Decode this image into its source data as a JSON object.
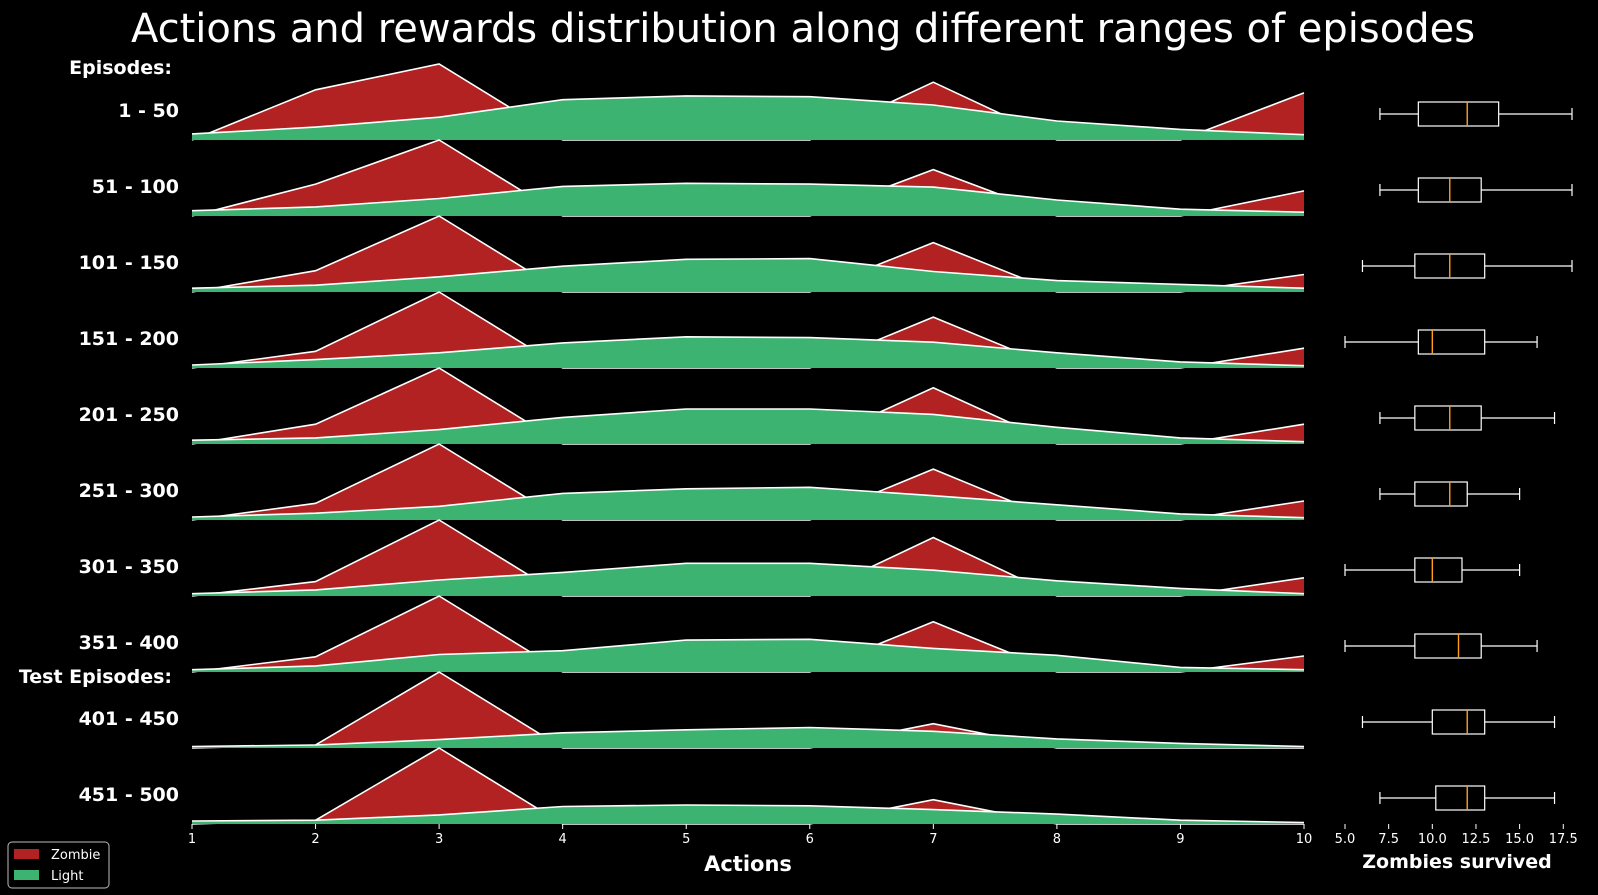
{
  "chart_data": {
    "type": "area",
    "title": "Actions and rewards distribution along different ranges of episodes",
    "group_headers": [
      "Episodes:",
      "Test Episodes:"
    ],
    "x": [
      1,
      2,
      3,
      4,
      5,
      6,
      7,
      8,
      9,
      10
    ],
    "xlabel": "Actions",
    "xlim": [
      1,
      10
    ],
    "legend": {
      "position": "bottom-left",
      "entries": [
        "Zombie",
        "Light"
      ]
    },
    "colors": {
      "Zombie": "#b22222",
      "Light": "#3cb371",
      "outline": "#ffffff",
      "median": "#ff9f1c",
      "background": "#000000"
    },
    "rows": [
      {
        "label": "1 - 50",
        "zombie": [
          0.0,
          0.66,
          1.0,
          0.0,
          0.0,
          0.0,
          0.76,
          0.0,
          0.0,
          0.62
        ],
        "light": [
          0.08,
          0.17,
          0.3,
          0.53,
          0.58,
          0.57,
          0.46,
          0.25,
          0.14,
          0.07
        ]
      },
      {
        "label": "51 - 100",
        "zombie": [
          0.0,
          0.42,
          1.0,
          0.0,
          0.0,
          0.0,
          0.61,
          0.0,
          0.0,
          0.33
        ],
        "light": [
          0.07,
          0.12,
          0.23,
          0.39,
          0.43,
          0.42,
          0.38,
          0.21,
          0.09,
          0.05
        ]
      },
      {
        "label": "101 - 150",
        "zombie": [
          0.0,
          0.28,
          1.0,
          0.0,
          0.0,
          0.0,
          0.65,
          0.0,
          0.0,
          0.23
        ],
        "light": [
          0.05,
          0.09,
          0.2,
          0.34,
          0.43,
          0.44,
          0.27,
          0.15,
          0.1,
          0.05
        ]
      },
      {
        "label": "151 - 200",
        "zombie": [
          0.0,
          0.22,
          1.0,
          0.0,
          0.0,
          0.0,
          0.67,
          0.0,
          0.0,
          0.26
        ],
        "light": [
          0.04,
          0.11,
          0.2,
          0.33,
          0.41,
          0.4,
          0.34,
          0.2,
          0.08,
          0.03
        ]
      },
      {
        "label": "201 - 250",
        "zombie": [
          0.0,
          0.26,
          1.0,
          0.0,
          0.0,
          0.0,
          0.74,
          0.0,
          0.0,
          0.26
        ],
        "light": [
          0.05,
          0.08,
          0.19,
          0.35,
          0.46,
          0.46,
          0.39,
          0.22,
          0.08,
          0.03
        ]
      },
      {
        "label": "251 - 300",
        "zombie": [
          0.0,
          0.22,
          1.0,
          0.0,
          0.0,
          0.0,
          0.67,
          0.0,
          0.0,
          0.25
        ],
        "light": [
          0.04,
          0.09,
          0.18,
          0.35,
          0.41,
          0.43,
          0.32,
          0.2,
          0.08,
          0.03
        ]
      },
      {
        "label": "301 - 350",
        "zombie": [
          0.0,
          0.19,
          1.0,
          0.0,
          0.0,
          0.0,
          0.77,
          0.0,
          0.0,
          0.24
        ],
        "light": [
          0.03,
          0.08,
          0.21,
          0.31,
          0.43,
          0.43,
          0.34,
          0.2,
          0.1,
          0.03
        ]
      },
      {
        "label": "351 - 400",
        "zombie": [
          0.0,
          0.2,
          1.0,
          0.0,
          0.0,
          0.0,
          0.66,
          0.0,
          0.0,
          0.21
        ],
        "light": [
          0.03,
          0.08,
          0.23,
          0.28,
          0.42,
          0.43,
          0.31,
          0.22,
          0.06,
          0.03
        ]
      },
      {
        "label": "401 - 450",
        "zombie": [
          0.0,
          0.04,
          1.0,
          0.0,
          0.0,
          0.0,
          0.32,
          0.0,
          0.0,
          0.0
        ],
        "light": [
          0.02,
          0.04,
          0.11,
          0.2,
          0.24,
          0.27,
          0.22,
          0.12,
          0.06,
          0.02
        ]
      },
      {
        "label": "451 - 500",
        "zombie": [
          0.0,
          0.05,
          1.0,
          0.0,
          0.0,
          0.0,
          0.32,
          0.0,
          0.0,
          0.0
        ],
        "light": [
          0.04,
          0.05,
          0.12,
          0.23,
          0.25,
          0.24,
          0.19,
          0.13,
          0.05,
          0.02
        ]
      }
    ],
    "boxplot": {
      "xlabel": "Zombies survived",
      "xlim": [
        5.0,
        18.0
      ],
      "xticks": [
        "5.0",
        "7.5",
        "10.0",
        "12.5",
        "15.0",
        "17.5"
      ],
      "boxes": [
        {
          "whislo": 7.0,
          "q1": 9.2,
          "med": 12.0,
          "q3": 13.8,
          "whishi": 18.0
        },
        {
          "whislo": 7.0,
          "q1": 9.2,
          "med": 11.0,
          "q3": 12.8,
          "whishi": 18.0
        },
        {
          "whislo": 6.0,
          "q1": 9.0,
          "med": 11.0,
          "q3": 13.0,
          "whishi": 18.0
        },
        {
          "whislo": 5.0,
          "q1": 9.2,
          "med": 10.0,
          "q3": 13.0,
          "whishi": 16.0
        },
        {
          "whislo": 7.0,
          "q1": 9.0,
          "med": 11.0,
          "q3": 12.8,
          "whishi": 17.0
        },
        {
          "whislo": 7.0,
          "q1": 9.0,
          "med": 11.0,
          "q3": 12.0,
          "whishi": 15.0
        },
        {
          "whislo": 5.0,
          "q1": 9.0,
          "med": 10.0,
          "q3": 11.7,
          "whishi": 15.0
        },
        {
          "whislo": 5.0,
          "q1": 9.0,
          "med": 11.5,
          "q3": 12.8,
          "whishi": 16.0
        },
        {
          "whislo": 6.0,
          "q1": 10.0,
          "med": 12.0,
          "q3": 13.0,
          "whishi": 17.0
        },
        {
          "whislo": 7.0,
          "q1": 10.2,
          "med": 12.0,
          "q3": 13.0,
          "whishi": 17.0
        }
      ]
    }
  }
}
